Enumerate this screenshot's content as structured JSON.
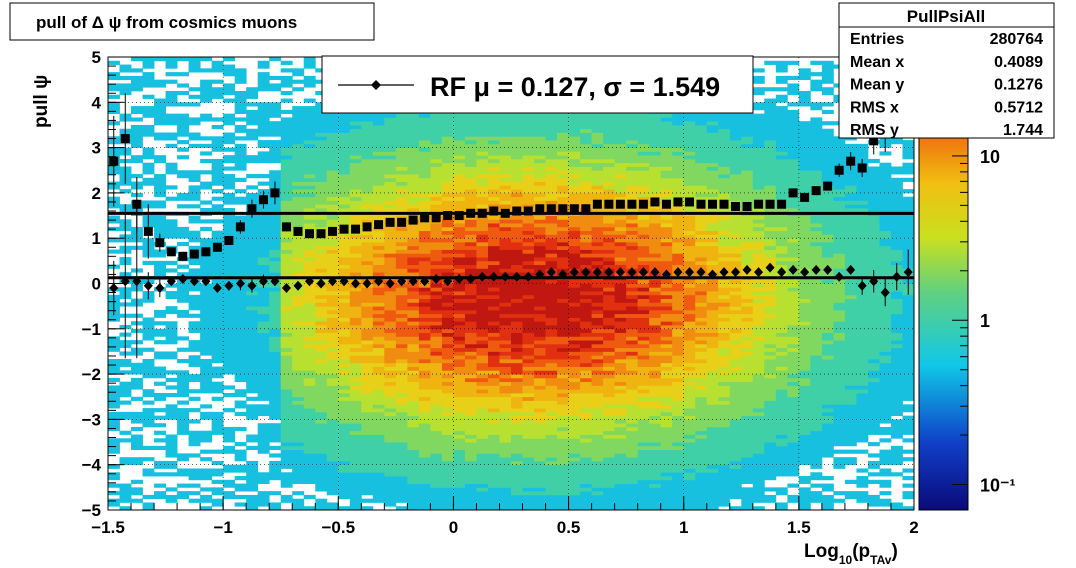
{
  "title": "pull of Δ ψ from cosmics muons",
  "stats": {
    "name": "PullPsiAll",
    "rows": [
      {
        "label": "Entries",
        "value": "280764"
      },
      {
        "label": "Mean x",
        "value": "0.4089"
      },
      {
        "label": "Mean y",
        "value": "0.1276"
      },
      {
        "label": "RMS x",
        "value": "0.5712"
      },
      {
        "label": "RMS y",
        "value": "1.744"
      }
    ]
  },
  "legend": {
    "text": "RF μ =  0.127, σ =   1.549"
  },
  "colorbar": {
    "ticks": [
      {
        "value": 10,
        "label": "10"
      },
      {
        "value": 1,
        "label": "1"
      },
      {
        "value": 0.1,
        "label": "10⁻¹"
      }
    ]
  },
  "chart_data": {
    "type": "heatmap",
    "title": "pull of Δ ψ from cosmics muons",
    "xlabel": "Log₁₀(pᴛᴀᴠ)",
    "ylabel": "pull ψ",
    "xlim": [
      -1.5,
      2.0
    ],
    "ylim": [
      -5,
      5
    ],
    "x_ticks": [
      "−1.5",
      "−1",
      "−0.5",
      "0",
      "0.5",
      "1",
      "1.5",
      "2"
    ],
    "y_ticks": [
      "−5",
      "−4",
      "−3",
      "−2",
      "−1",
      "0",
      "1",
      "2",
      "3",
      "4",
      "5"
    ],
    "grid": true,
    "z_scale": "log",
    "zlim": [
      0.07,
      40
    ],
    "reference_lines": [
      {
        "y": 1.549
      },
      {
        "y": 0.127
      }
    ],
    "series": [
      {
        "marker": "square",
        "x": [
          -1.475,
          -1.425,
          -1.375,
          -1.325,
          -1.275,
          -1.225,
          -1.175,
          -1.125,
          -1.075,
          -1.025,
          -0.975,
          -0.925,
          -0.875,
          -0.825,
          -0.775,
          -0.725,
          -0.675,
          -0.625,
          -0.575,
          -0.525,
          -0.475,
          -0.425,
          -0.375,
          -0.325,
          -0.275,
          -0.225,
          -0.175,
          -0.125,
          -0.075,
          -0.025,
          0.025,
          0.075,
          0.125,
          0.175,
          0.225,
          0.275,
          0.325,
          0.375,
          0.425,
          0.475,
          0.525,
          0.575,
          0.625,
          0.675,
          0.725,
          0.775,
          0.825,
          0.875,
          0.925,
          0.975,
          1.025,
          1.075,
          1.125,
          1.175,
          1.225,
          1.275,
          1.325,
          1.375,
          1.425,
          1.475,
          1.525,
          1.575,
          1.625,
          1.675,
          1.725,
          1.775,
          1.825,
          1.875,
          1.925
        ],
        "y": [
          2.7,
          3.2,
          1.75,
          1.15,
          0.9,
          0.7,
          0.6,
          0.65,
          0.7,
          0.8,
          0.95,
          1.25,
          1.65,
          1.85,
          2.0,
          1.25,
          1.15,
          1.1,
          1.1,
          1.15,
          1.2,
          1.2,
          1.25,
          1.3,
          1.35,
          1.35,
          1.4,
          1.45,
          1.45,
          1.5,
          1.5,
          1.55,
          1.55,
          1.6,
          1.55,
          1.6,
          1.6,
          1.65,
          1.65,
          1.65,
          1.65,
          1.65,
          1.75,
          1.75,
          1.75,
          1.75,
          1.75,
          1.8,
          1.75,
          1.8,
          1.8,
          1.75,
          1.75,
          1.75,
          1.7,
          1.7,
          1.75,
          1.75,
          1.75,
          2.0,
          1.9,
          2.05,
          2.15,
          2.5,
          2.7,
          2.55,
          3.15,
          3.3,
          3.8
        ],
        "yerr": [
          1.0,
          1.0,
          0.6,
          0.6,
          0.2,
          0.1,
          0.1,
          0.1,
          0.1,
          0.1,
          0.1,
          0.15,
          0.2,
          0.2,
          0.25,
          0.1,
          0.05,
          0.05,
          0.05,
          0.05,
          0.05,
          0.05,
          0.05,
          0.05,
          0.05,
          0.05,
          0.05,
          0.05,
          0.05,
          0.05,
          0.05,
          0.05,
          0.05,
          0.05,
          0.05,
          0.05,
          0.05,
          0.05,
          0.05,
          0.05,
          0.05,
          0.05,
          0.05,
          0.05,
          0.05,
          0.05,
          0.05,
          0.05,
          0.05,
          0.05,
          0.05,
          0.05,
          0.05,
          0.05,
          0.05,
          0.05,
          0.05,
          0.05,
          0.05,
          0.05,
          0.05,
          0.1,
          0.1,
          0.15,
          0.2,
          0.2,
          0.3,
          0.4,
          0.5
        ]
      },
      {
        "marker": "diamond",
        "x": [
          -1.475,
          -1.425,
          -1.375,
          -1.325,
          -1.275,
          -1.225,
          -1.175,
          -1.125,
          -1.075,
          -1.025,
          -0.975,
          -0.925,
          -0.875,
          -0.825,
          -0.775,
          -0.725,
          -0.675,
          -0.625,
          -0.575,
          -0.525,
          -0.475,
          -0.425,
          -0.375,
          -0.325,
          -0.275,
          -0.225,
          -0.175,
          -0.125,
          -0.075,
          -0.025,
          0.025,
          0.075,
          0.125,
          0.175,
          0.225,
          0.275,
          0.325,
          0.375,
          0.425,
          0.475,
          0.525,
          0.575,
          0.625,
          0.675,
          0.725,
          0.775,
          0.825,
          0.875,
          0.925,
          0.975,
          1.025,
          1.075,
          1.125,
          1.175,
          1.225,
          1.275,
          1.325,
          1.375,
          1.425,
          1.475,
          1.525,
          1.575,
          1.625,
          1.675,
          1.725,
          1.775,
          1.825,
          1.875,
          1.925,
          1.975
        ],
        "y": [
          -0.1,
          0.05,
          0.05,
          -0.05,
          -0.1,
          0.05,
          0.1,
          0.05,
          0.05,
          -0.1,
          -0.05,
          0.0,
          -0.05,
          0.05,
          0.05,
          -0.1,
          -0.05,
          0.05,
          0.0,
          0.05,
          0.05,
          0.0,
          0.0,
          0.05,
          0.0,
          0.05,
          0.05,
          0.05,
          0.1,
          0.05,
          0.1,
          0.1,
          0.15,
          0.15,
          0.15,
          0.15,
          0.15,
          0.2,
          0.25,
          0.2,
          0.25,
          0.25,
          0.25,
          0.25,
          0.25,
          0.25,
          0.25,
          0.25,
          0.2,
          0.25,
          0.25,
          0.25,
          0.2,
          0.25,
          0.25,
          0.3,
          0.25,
          0.35,
          0.25,
          0.3,
          0.25,
          0.3,
          0.3,
          0.15,
          0.3,
          -0.05,
          0.05,
          -0.2,
          0.15,
          0.25
        ],
        "yerr": [
          0.6,
          1.7,
          1.7,
          0.3,
          0.2,
          0.1,
          0.1,
          0.1,
          0.1,
          0.1,
          0.1,
          0.15,
          0.15,
          0.15,
          0.1,
          0.1,
          0.05,
          0.05,
          0.05,
          0.05,
          0.05,
          0.05,
          0.05,
          0.05,
          0.05,
          0.05,
          0.05,
          0.05,
          0.05,
          0.05,
          0.05,
          0.05,
          0.05,
          0.05,
          0.05,
          0.05,
          0.05,
          0.05,
          0.05,
          0.05,
          0.05,
          0.05,
          0.05,
          0.05,
          0.05,
          0.05,
          0.05,
          0.05,
          0.05,
          0.05,
          0.05,
          0.05,
          0.05,
          0.05,
          0.05,
          0.05,
          0.05,
          0.05,
          0.05,
          0.05,
          0.05,
          0.05,
          0.05,
          0.1,
          0.1,
          0.2,
          0.25,
          0.3,
          0.3,
          0.5
        ]
      }
    ]
  }
}
